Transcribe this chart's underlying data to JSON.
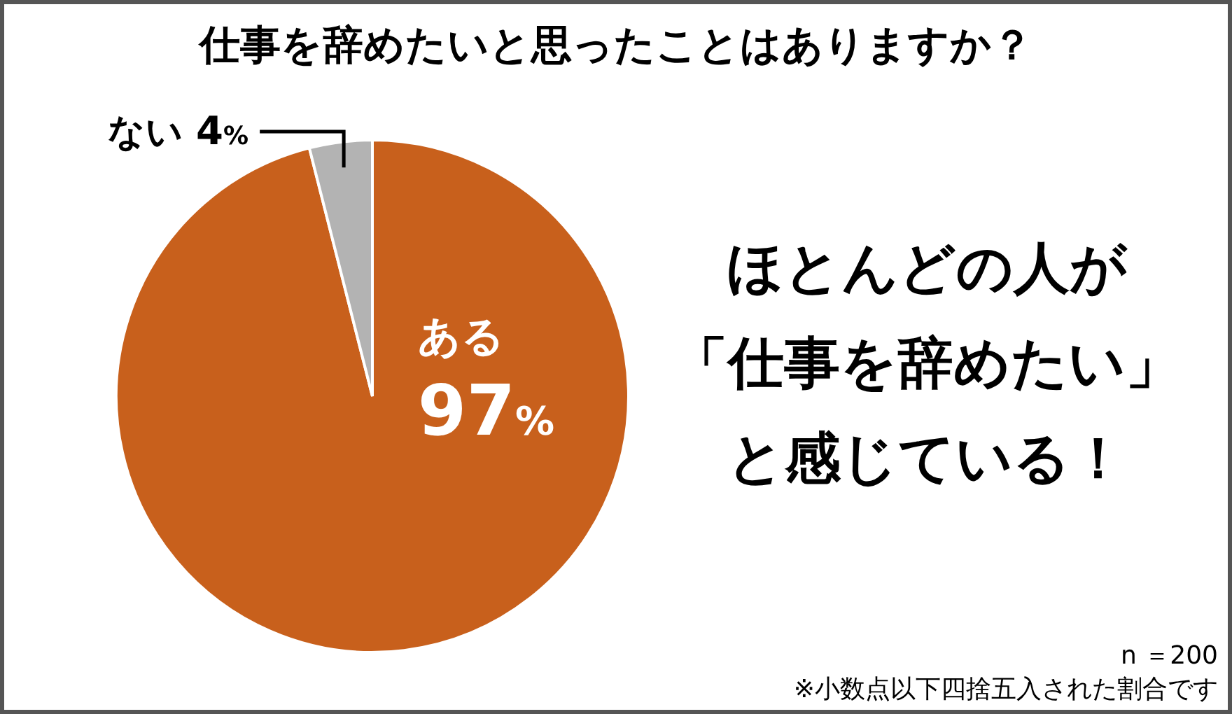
{
  "chart_data": {
    "type": "pie",
    "title": "仕事を辞めたいと思ったことはありますか？",
    "categories": [
      "ある",
      "ない"
    ],
    "values": [
      97,
      4
    ],
    "colors": [
      "#c8601c",
      "#b3b3b3"
    ],
    "value_labels": [
      "97%",
      "4%"
    ],
    "annotations": [
      "ほとんどの人が",
      "「仕事を辞めたい」",
      "と感じている！",
      "n ＝200",
      "※小数点以下四捨五入された割合です"
    ]
  }
}
